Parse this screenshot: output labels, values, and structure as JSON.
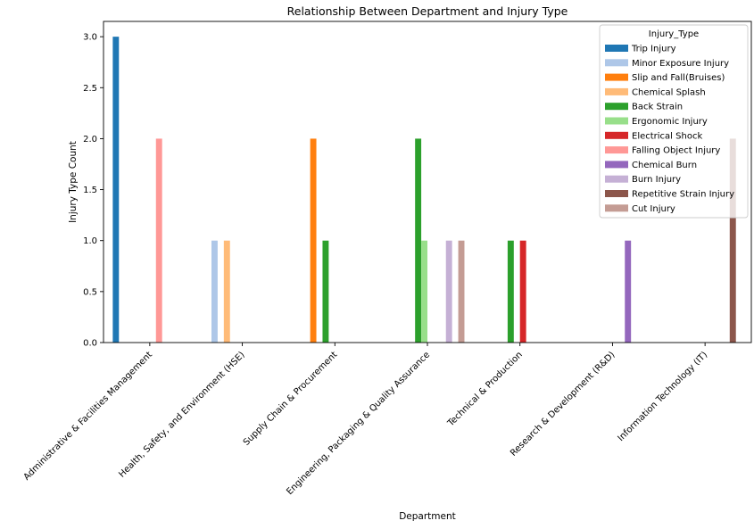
{
  "chart_data": {
    "type": "bar",
    "title": "Relationship Between Department and Injury Type",
    "xlabel": "Department",
    "ylabel": "Injury Type Count",
    "ylim": [
      0,
      3.15
    ],
    "yticks": [
      0.0,
      0.5,
      1.0,
      1.5,
      2.0,
      2.5,
      3.0
    ],
    "ytick_labels": [
      "0.0",
      "0.5",
      "1.0",
      "1.5",
      "2.0",
      "2.5",
      "3.0"
    ],
    "grid": false,
    "legend_title": "Injury_Type",
    "legend_position": "top-right",
    "categories": [
      "Administrative & Facilities Management",
      "Health, Safety, and Environment (HSE)",
      "Supply Chain & Procurement",
      "Engineering, Packaging & Quality Assurance",
      "Technical & Production",
      "Research & Development (R&D)",
      "Information Technology (IT)"
    ],
    "series": [
      {
        "name": "Trip Injury",
        "color": "#1f77b4",
        "values": [
          3,
          0,
          0,
          0,
          0,
          0,
          0
        ]
      },
      {
        "name": "Minor Exposure Injury",
        "color": "#aec7e8",
        "values": [
          0,
          1,
          0,
          0,
          0,
          0,
          0
        ]
      },
      {
        "name": "Slip and Fall(Bruises)",
        "color": "#ff7f0e",
        "values": [
          0,
          0,
          2,
          0,
          0,
          0,
          0
        ]
      },
      {
        "name": "Chemical Splash",
        "color": "#ffbb78",
        "values": [
          0,
          1,
          0,
          0,
          0,
          0,
          0
        ]
      },
      {
        "name": "Back Strain",
        "color": "#2ca02c",
        "values": [
          0,
          0,
          1,
          2,
          1,
          0,
          0
        ]
      },
      {
        "name": "Ergonomic Injury",
        "color": "#98df8a",
        "values": [
          0,
          0,
          0,
          1,
          0,
          0,
          0
        ]
      },
      {
        "name": "Electrical Shock",
        "color": "#d62728",
        "values": [
          0,
          0,
          0,
          0,
          1,
          0,
          0
        ]
      },
      {
        "name": "Falling Object Injury",
        "color": "#ff9896",
        "values": [
          2,
          0,
          0,
          0,
          0,
          0,
          0
        ]
      },
      {
        "name": "Chemical Burn",
        "color": "#9467bd",
        "values": [
          0,
          0,
          0,
          0,
          0,
          1,
          0
        ]
      },
      {
        "name": "Burn Injury",
        "color": "#c5b0d5",
        "values": [
          0,
          0,
          0,
          1,
          0,
          0,
          0
        ]
      },
      {
        "name": "Repetitive Strain Injury",
        "color": "#8c564b",
        "values": [
          0,
          0,
          0,
          0,
          0,
          0,
          2
        ]
      },
      {
        "name": "Cut Injury",
        "color": "#c49c94",
        "values": [
          0,
          0,
          0,
          1,
          0,
          0,
          0
        ]
      }
    ]
  }
}
